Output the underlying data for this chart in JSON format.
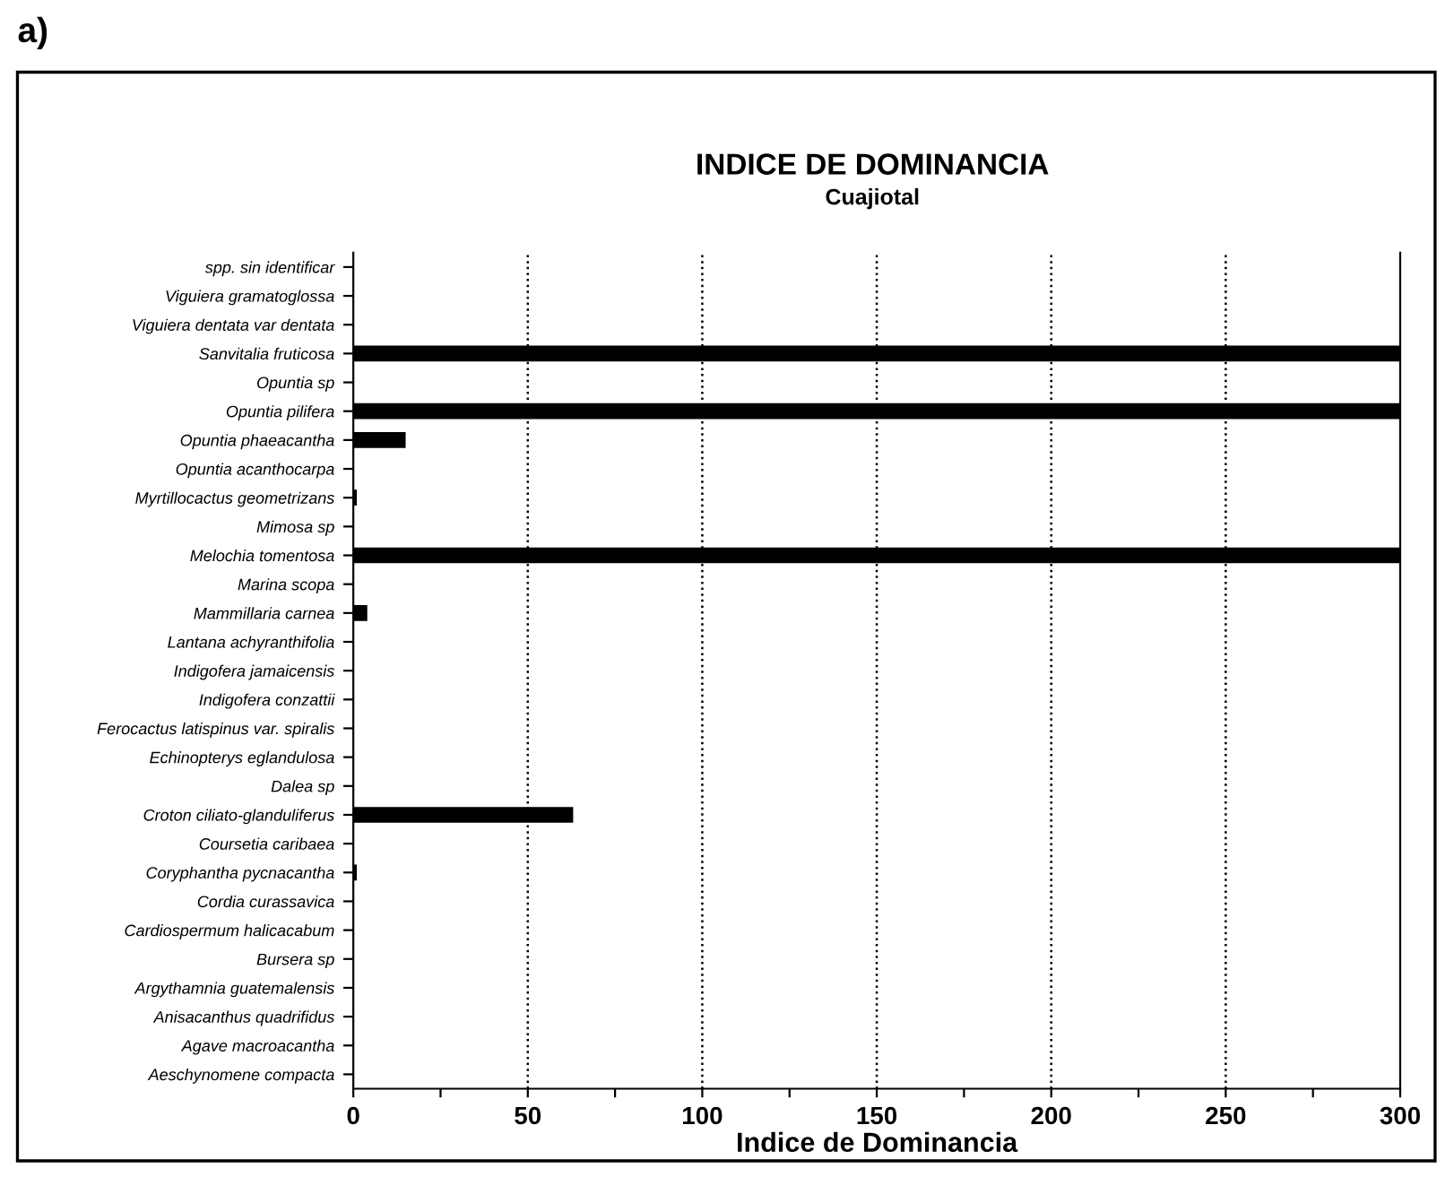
{
  "chart_data": {
    "type": "bar",
    "orientation": "horizontal",
    "title": "INDICE DE DOMINANCIA",
    "subtitle": "Cuajiotal",
    "xlabel": "Indice de Dominancia",
    "annotations": [
      "a)"
    ],
    "categories": [
      "spp. sin identificar",
      "Viguiera gramatoglossa",
      "Viguiera dentata var dentata",
      "Sanvitalia fruticosa",
      "Opuntia sp",
      "Opuntia pilifera",
      "Opuntia phaeacantha",
      "Opuntia acanthocarpa",
      "Myrtillocactus geometrizans",
      "Mimosa sp",
      "Melochia tomentosa",
      "Marina scopa",
      "Mammillaria carnea",
      "Lantana achyranthifolia",
      "Indigofera jamaicensis",
      "Indigofera conzattii",
      "Ferocactus latispinus var. spiralis",
      "Echinopterys eglandulosa",
      "Dalea sp",
      "Croton ciliato-glanduliferus",
      "Coursetia caribaea",
      "Coryphantha pycnacantha",
      "Cordia curassavica",
      "Cardiospermum halicacabum",
      "Bursera sp",
      "Argythamnia guatemalensis",
      "Anisacanthus quadrifidus",
      "Agave macroacantha",
      "Aeschynomene compacta"
    ],
    "values": [
      0,
      0,
      0,
      300,
      0,
      300,
      15,
      0,
      1,
      0,
      300,
      0,
      4,
      0,
      0,
      0,
      0,
      0,
      0,
      63,
      0,
      1,
      0,
      0,
      0,
      0,
      0,
      0,
      0
    ],
    "color": "#000000",
    "xlim": [
      0,
      300
    ],
    "xticks": [
      0,
      {
        "value": 25,
        "label": null
      },
      50,
      {
        "value": 75,
        "label": null
      },
      100,
      {
        "value": 125,
        "label": null
      },
      150,
      {
        "value": 175,
        "label": null
      },
      200,
      {
        "value": 225,
        "label": null
      },
      250,
      {
        "value": 275,
        "label": null
      },
      300
    ],
    "grid": "x",
    "line_style": "dotted"
  }
}
